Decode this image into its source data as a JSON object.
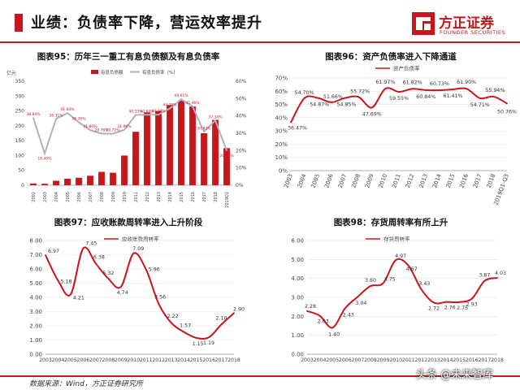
{
  "header": {
    "title": "业绩：负债率下降，营运效率提升"
  },
  "logo": {
    "name_cn": "方正证券",
    "name_en": "FOUNDER SECURITIES",
    "accent": "#c8161d"
  },
  "footer": {
    "source": "数据来源：Wind，方正证券研究所",
    "watermark": "头条 @未来智库"
  },
  "chart_data": [
    {
      "id": "fig95",
      "type": "bar+line",
      "title": "图表95：历年三一重工有息负债额及有息负债率",
      "y_unit_label": "亿元",
      "categories": [
        "2002",
        "2003",
        "2004",
        "2005",
        "2006",
        "2007",
        "2008",
        "2009",
        "2010",
        "2011",
        "2012",
        "2013",
        "2014",
        "2015",
        "2016",
        "2017",
        "2018",
        "2019Q1"
      ],
      "legend": [
        "有息负债额",
        "有息负债率（%）"
      ],
      "ylim_left": [
        0,
        350
      ],
      "yticks_left": [
        0,
        50,
        100,
        150,
        200,
        250,
        300,
        350
      ],
      "ylim_right": [
        0,
        60
      ],
      "yticks_right": [
        "0%",
        "10%",
        "20%",
        "30%",
        "40%",
        "50%",
        "60%"
      ],
      "series": [
        {
          "name": "有息负债额",
          "kind": "bar",
          "color": "#c8161d",
          "values": [
            6,
            5,
            15,
            22,
            25,
            32,
            45,
            42,
            100,
            180,
            245,
            250,
            270,
            285,
            265,
            175,
            220,
            125
          ]
        },
        {
          "name": "有息负债率（%）",
          "kind": "line",
          "color": "#aab3c2",
          "values": [
            38.84,
            18.4,
            38.31,
            41.64,
            36.36,
            31.8,
            29.76,
            29.72,
            31.96,
            40.53,
            40.64,
            40.7,
            44.28,
            49.61,
            45.46,
            30.82,
            37.34,
            20.07
          ],
          "labels": [
            "38.84%",
            "18.40%",
            "38.31%",
            "41.64%",
            "36.36%",
            "31.80%",
            "29.76%",
            "29.72%",
            "31.96%",
            "40.53%",
            "40.64%",
            "40.70%",
            "44.28%",
            "49.61%",
            "45.46%",
            "30.82%",
            "37.34%",
            "20.07%"
          ]
        }
      ]
    },
    {
      "id": "fig96",
      "type": "line",
      "title": "图表96：资产负债率进入下降通道",
      "legend": [
        "资产负债率"
      ],
      "categories": [
        "2003",
        "2004",
        "2005",
        "2006",
        "2007",
        "2008",
        "2009",
        "2010",
        "2011",
        "2012",
        "2013",
        "2014",
        "2015",
        "2016",
        "2017",
        "2018",
        "2019Q1-Q3"
      ],
      "ylim": [
        0,
        70
      ],
      "yticks": [
        "0%",
        "10%",
        "20%",
        "30%",
        "40%",
        "50%",
        "60%",
        "70%"
      ],
      "series": [
        {
          "name": "资产负债率",
          "color": "#c8161d",
          "values": [
            36.47,
            54.7,
            54.87,
            51.66,
            54.85,
            55.72,
            47.69,
            61.97,
            59.55,
            61.82,
            60.84,
            60.73,
            61.41,
            61.9,
            54.71,
            55.94,
            50.76
          ],
          "labels": [
            "36.47%",
            "54.70%",
            "54.87%",
            "51.66%",
            "54.85%",
            "55.72%",
            "47.69%",
            "61.97%",
            "59.55%",
            "61.82%",
            "60.84%",
            "60.73%",
            "61.41%",
            "61.90%",
            "54.71%",
            "55.94%",
            "50.76%"
          ]
        }
      ]
    },
    {
      "id": "fig97",
      "type": "line",
      "title": "图表97：应收账款周转率进入上升阶段",
      "legend": [
        "应收账款周转率"
      ],
      "categories": [
        "2003",
        "2004",
        "2005",
        "2006",
        "2007",
        "2008",
        "2009",
        "2010",
        "2011",
        "2012",
        "2013",
        "2014",
        "2015",
        "2016",
        "2017",
        "2018"
      ],
      "ylim": [
        0,
        8
      ],
      "yticks": [
        "0.00",
        "1.00",
        "2.00",
        "3.00",
        "4.00",
        "5.00",
        "6.00",
        "7.00",
        "8.00"
      ],
      "series": [
        {
          "name": "应收账款周转率",
          "color": "#c8161d",
          "values": [
            6.97,
            5.18,
            4.21,
            7.45,
            6.38,
            5.32,
            4.74,
            7.09,
            5.96,
            3.56,
            2.22,
            1.57,
            1.15,
            1.19,
            2.1,
            2.9
          ],
          "labels": [
            "6.97",
            "5.18",
            "4.21",
            "7.45",
            "6.38",
            "5.32",
            "4.74",
            "7.09",
            "5.96",
            "3.56",
            "2.22",
            "1.57",
            "1.15",
            "1.19",
            "2.10",
            "2.90"
          ]
        }
      ]
    },
    {
      "id": "fig98",
      "type": "line",
      "title": "图表98：存货周转率有所上升",
      "legend": [
        "存货周转率"
      ],
      "categories": [
        "2003",
        "2004",
        "2005",
        "2006",
        "2007",
        "2008",
        "2009",
        "2010",
        "2011",
        "2012",
        "2013",
        "2014",
        "2015",
        "2016",
        "2017",
        "2018"
      ],
      "ylim": [
        0,
        6
      ],
      "yticks": [
        "0.00",
        "1.00",
        "2.00",
        "3.00",
        "4.00",
        "5.00",
        "6.00"
      ],
      "series": [
        {
          "name": "存货周转率",
          "color": "#c8161d",
          "values": [
            2.28,
            2.03,
            1.4,
            2.43,
            3.04,
            3.6,
            3.75,
            4.97,
            4.67,
            3.43,
            2.72,
            2.76,
            2.75,
            2.93,
            3.87,
            4.03
          ],
          "labels": [
            "2.28",
            "2.03",
            "1.40",
            "2.43",
            "3.04",
            "3.60",
            "3.75",
            "4.97",
            "4.67",
            "3.43",
            "2.72",
            "2.76",
            "2.75",
            "2.93",
            "3.87",
            "4.03"
          ]
        }
      ]
    }
  ]
}
